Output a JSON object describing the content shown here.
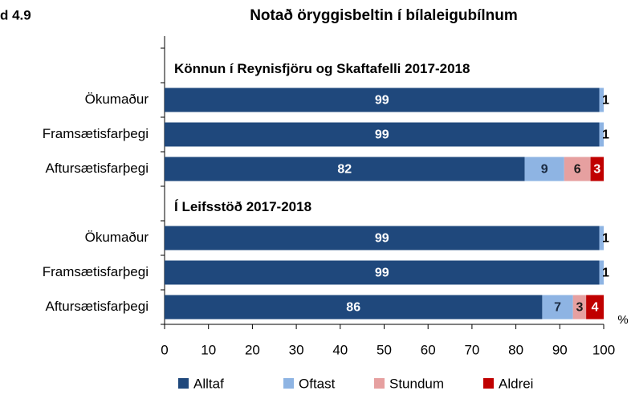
{
  "chart_data": {
    "type": "stacked_barh",
    "figure_label": "d 4.9",
    "title": "Notað öryggisbeltin í bílaleigubílnum",
    "unit": "%",
    "section_labels": [
      "Könnun í Reynisfjöru og Skaftafelli 2017-2018",
      "Í Leifsstöð 2017-2018"
    ],
    "categories": [
      null,
      "Ökumaður",
      "Framsætisfarþegi",
      "Aftursætisfarþegi",
      null,
      "Ökumaður",
      "Framsætisfarþegi",
      "Aftursætisfarþegi"
    ],
    "series": [
      {
        "name": "Alltaf",
        "color": "#1f487c",
        "label_color": "#ffffff",
        "values": [
          null,
          99,
          99,
          82,
          null,
          99,
          99,
          86
        ]
      },
      {
        "name": "Oftast",
        "color": "#8eb4e3",
        "label_color": "#1a2a40",
        "values": [
          null,
          1,
          1,
          9,
          null,
          1,
          1,
          7
        ]
      },
      {
        "name": "Stundum",
        "color": "#e6a0a0",
        "label_color": "#1a1a1a",
        "values": [
          null,
          null,
          null,
          6,
          null,
          null,
          null,
          3
        ]
      },
      {
        "name": "Aldrei",
        "color": "#c00000",
        "label_color": "#ffffff",
        "values": [
          null,
          null,
          null,
          3,
          null,
          null,
          null,
          4
        ]
      }
    ],
    "xlim": [
      0,
      100
    ],
    "xticks": [
      0,
      10,
      20,
      30,
      40,
      50,
      60,
      70,
      80,
      90,
      100
    ],
    "legend": "bottom"
  }
}
